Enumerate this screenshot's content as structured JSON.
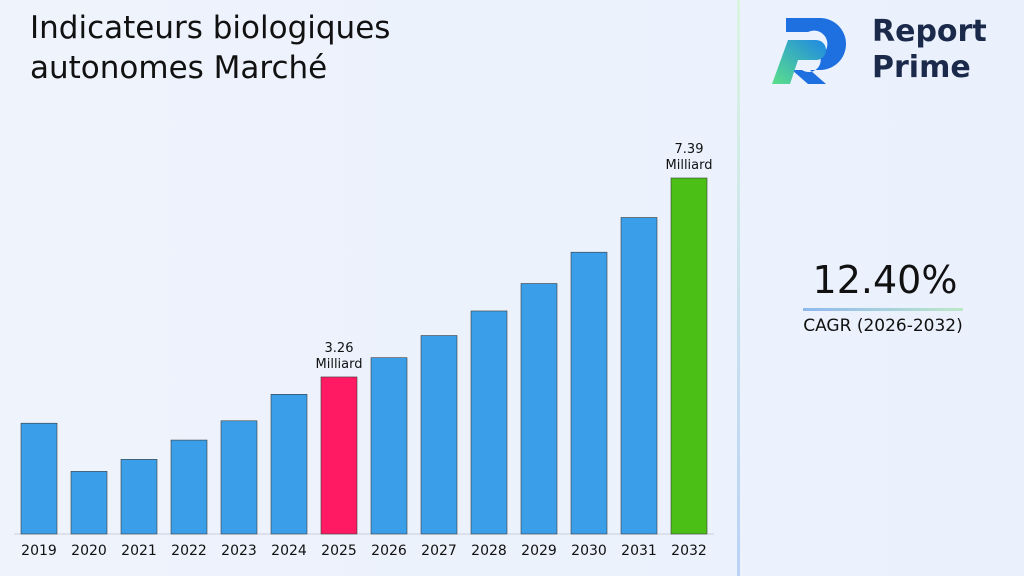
{
  "brand": "Report Prime",
  "cagr": {
    "value": "12.40%",
    "label": "CAGR (2026-2032)"
  },
  "chart_data": {
    "type": "bar",
    "title": "Indicateurs biologiques autonomes Marché",
    "categories": [
      "2019",
      "2020",
      "2021",
      "2022",
      "2023",
      "2024",
      "2025",
      "2026",
      "2027",
      "2028",
      "2029",
      "2030",
      "2031",
      "2032"
    ],
    "values": [
      2.3,
      1.3,
      1.55,
      1.95,
      2.35,
      2.9,
      3.26,
      3.66,
      4.12,
      4.63,
      5.2,
      5.85,
      6.57,
      7.39
    ],
    "value_labels": [
      null,
      null,
      null,
      null,
      null,
      null,
      "3.26 Milliard",
      null,
      null,
      null,
      null,
      null,
      null,
      "7.39 Milliard"
    ],
    "colors": [
      "#3a9fe8",
      "#3a9fe8",
      "#3a9fe8",
      "#3a9fe8",
      "#3a9fe8",
      "#3a9fe8",
      "#ff1a63",
      "#3a9fe8",
      "#3a9fe8",
      "#3a9fe8",
      "#3a9fe8",
      "#3a9fe8",
      "#3a9fe8",
      "#4cbf16"
    ],
    "ylim": [
      0,
      8.2
    ]
  }
}
